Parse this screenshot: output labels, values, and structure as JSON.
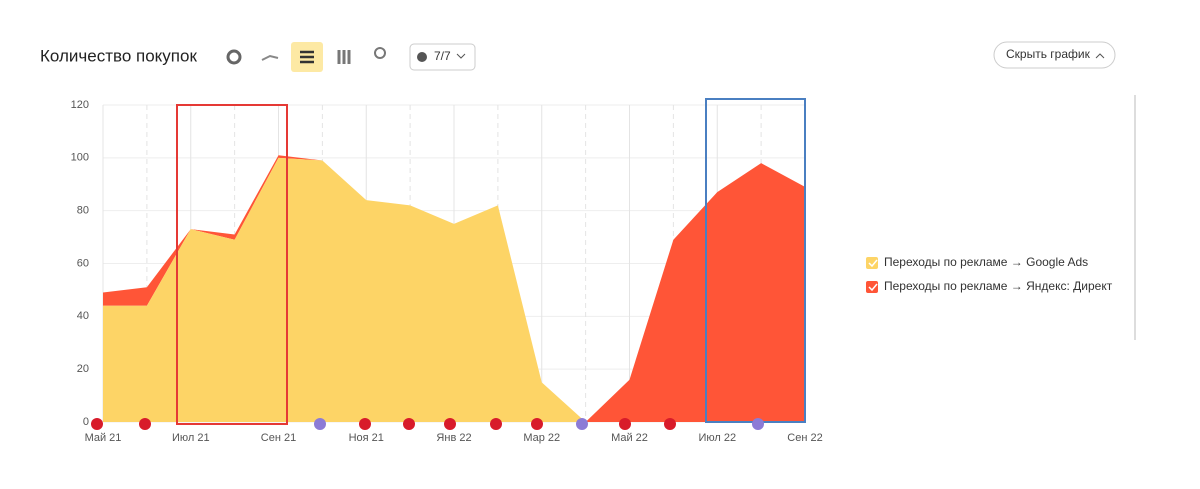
{
  "header": {
    "title": "Количество покупок",
    "filter_count": "7/7",
    "hide_button": "Скрыть график"
  },
  "chart_data": {
    "type": "stacked-area",
    "categories": [
      "Май 21",
      null,
      "Июл 21",
      null,
      "Сен 21",
      null,
      "Ноя 21",
      null,
      "Янв 22",
      null,
      "Мар 22",
      null,
      "Май 22",
      null,
      "Июл 22",
      null,
      "Сен 22"
    ],
    "series": [
      {
        "name": "Переходы по рекламе → Google Ads",
        "color": "#fdd466",
        "values": [
          44,
          44,
          73,
          69,
          100,
          99,
          84,
          82,
          75,
          82,
          15,
          0,
          0,
          0,
          0,
          0,
          0
        ]
      },
      {
        "name": "Переходы по рекламе → Яндекс: Директ",
        "color": "#ff5537",
        "values": [
          5,
          7,
          0,
          2,
          1,
          0,
          0,
          0,
          0,
          0,
          0,
          0,
          16,
          69,
          87,
          98,
          89
        ]
      }
    ],
    "ylim": [
      0,
      120
    ],
    "yticks": [
      0,
      20,
      40,
      60,
      80,
      100,
      120
    ],
    "grid": true
  }
}
